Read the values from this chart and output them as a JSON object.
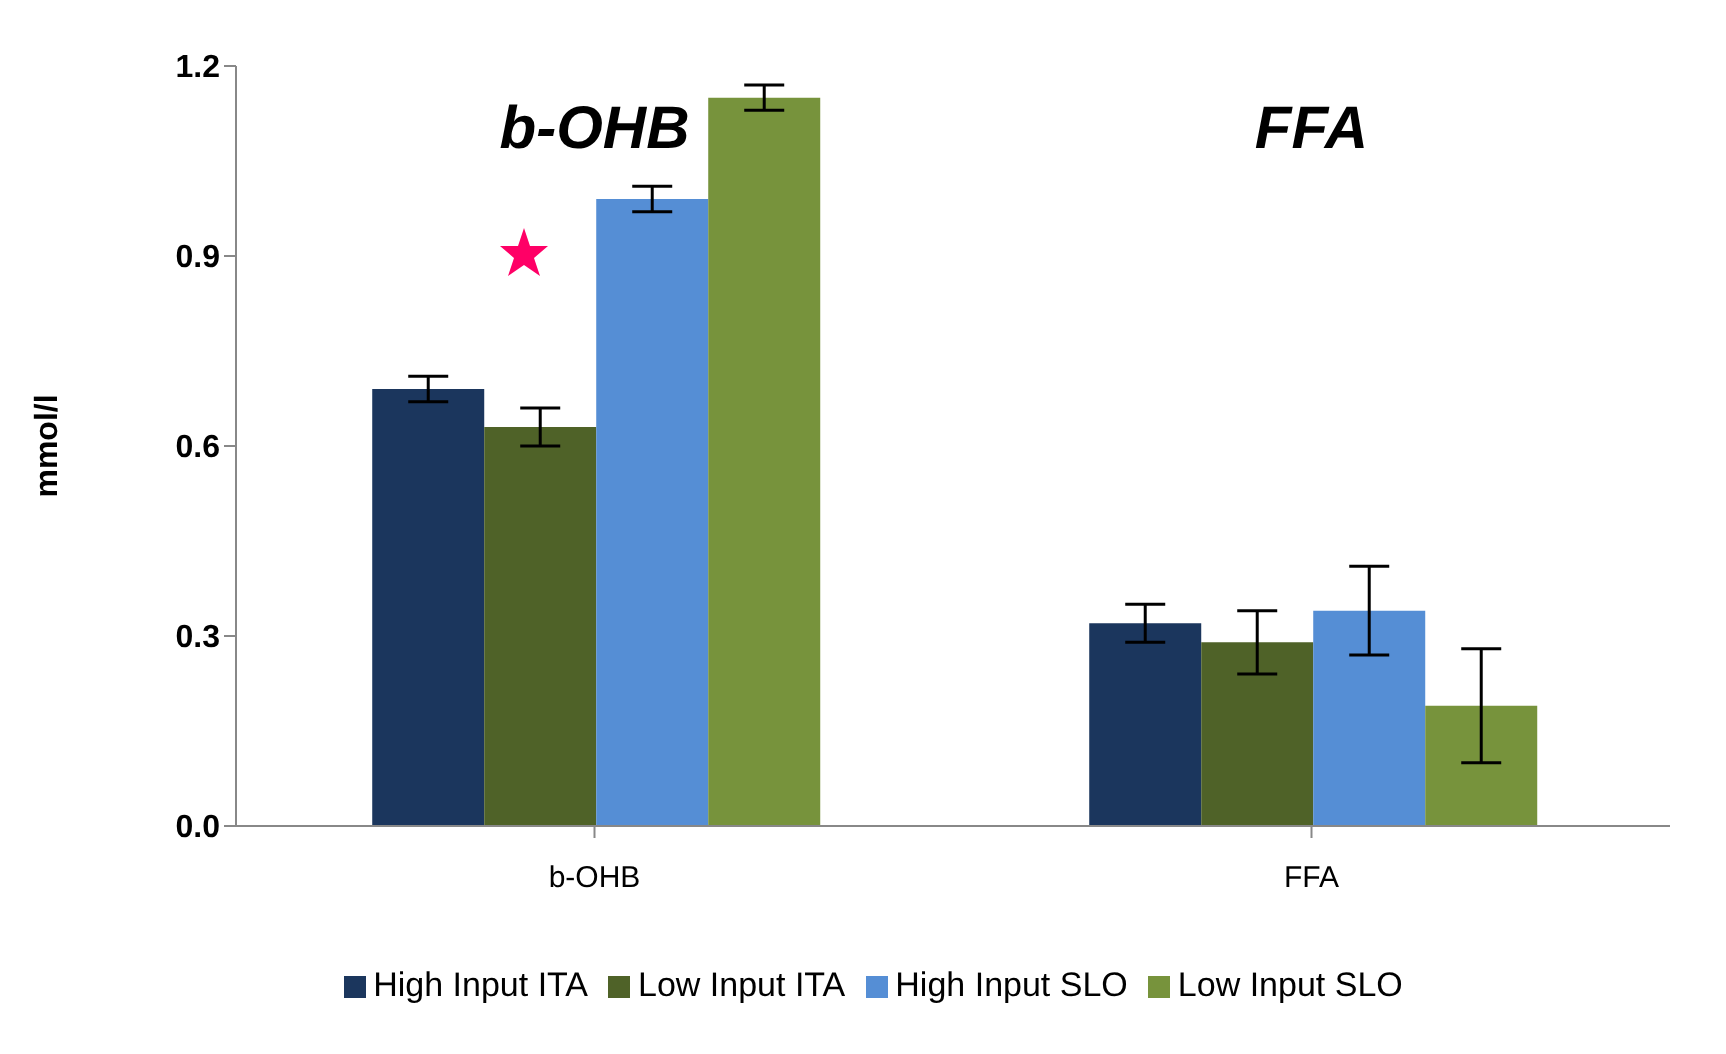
{
  "chart_data": {
    "type": "bar",
    "categories": [
      "b-OHB",
      "FFA"
    ],
    "ylabel": "mmol/l",
    "ylim": [
      0,
      1.2
    ],
    "yticks": [
      {
        "value": 0,
        "label": "0.0"
      },
      0.3,
      0.6,
      0.9,
      1.2
    ],
    "series": [
      {
        "name": "High Input ITA",
        "color": "#1b365d",
        "values": [
          0.69,
          0.32
        ],
        "errors": [
          0.02,
          0.03
        ]
      },
      {
        "name": "Low Input ITA",
        "color": "#4f6228",
        "values": [
          0.63,
          0.29
        ],
        "errors": [
          0.03,
          0.05
        ]
      },
      {
        "name": "High Input SLO",
        "color": "#558ed5",
        "values": [
          0.99,
          0.34
        ],
        "errors": [
          0.02,
          0.07
        ]
      },
      {
        "name": "Low Input SLO",
        "color": "#77933c",
        "values": [
          1.15,
          0.19
        ],
        "errors": [
          0.02,
          0.09
        ]
      }
    ],
    "annotations": [
      "b-OHB",
      "FFA"
    ],
    "grid": false,
    "legend": "bottom"
  }
}
